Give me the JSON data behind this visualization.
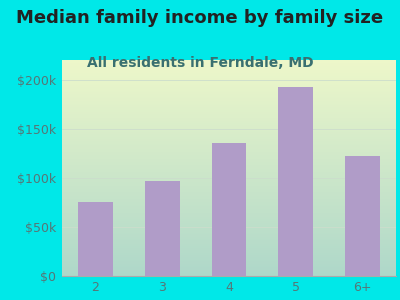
{
  "title": "Median family income by family size",
  "subtitle": "All residents in Ferndale, MD",
  "categories": [
    "2",
    "3",
    "4",
    "5",
    "6+"
  ],
  "values": [
    75000,
    97000,
    135000,
    193000,
    122000
  ],
  "bar_color": "#b09cc8",
  "background_outer": "#00e8e8",
  "background_inner_top": "#d0ecd8",
  "background_inner_bot": "#f0f8f0",
  "title_color": "#222222",
  "subtitle_color": "#3a7070",
  "tick_color": "#557777",
  "ylim": [
    0,
    220000
  ],
  "yticks": [
    0,
    50000,
    100000,
    150000,
    200000
  ],
  "ytick_labels": [
    "$0",
    "$50k",
    "$100k",
    "$150k",
    "$200k"
  ],
  "title_fontsize": 13,
  "subtitle_fontsize": 10,
  "tick_fontsize": 9
}
